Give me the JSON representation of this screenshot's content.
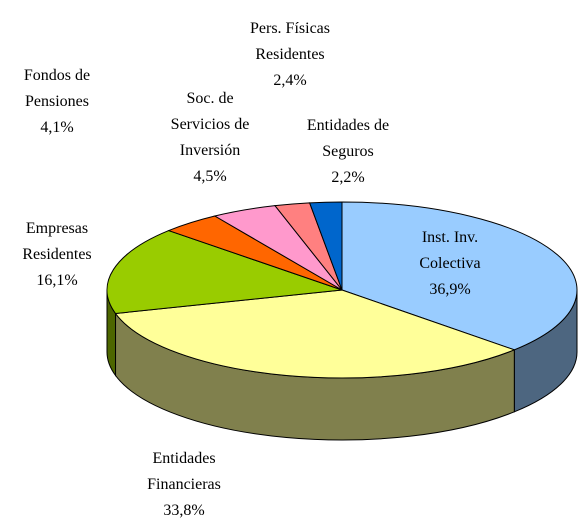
{
  "chart_data": {
    "type": "pie3d",
    "categories": [
      "Inst. Inv.\nColectiva",
      "Entidades\nFinancieras",
      "Empresas\nResidentes",
      "Fondos de\nPensiones",
      "Soc. de\nServicios de\nInversión",
      "Pers. Físicas\nResidentes",
      "Entidades de\nSeguros"
    ],
    "values": [
      36.9,
      33.8,
      16.1,
      4.1,
      4.5,
      2.4,
      2.2
    ],
    "value_labels": [
      "36,9%",
      "33,8%",
      "16,1%",
      "4,1%",
      "4,5%",
      "2,4%",
      "2,2%"
    ],
    "colors": [
      "#99ccff",
      "#ffff99",
      "#99cc00",
      "#ff6600",
      "#ff99cc",
      "#ff8080",
      "#0066cc"
    ]
  }
}
